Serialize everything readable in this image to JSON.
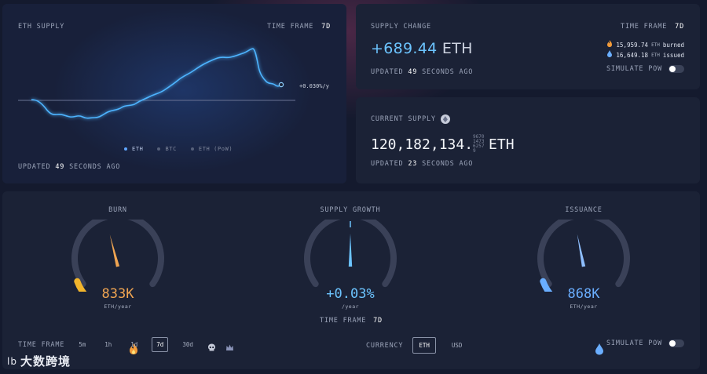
{
  "eth_supply": {
    "title": "ETH SUPPLY",
    "time_frame_label": "TIME FRAME",
    "time_frame_value": "7d",
    "rate_label": "+0.030%/y",
    "legend": [
      {
        "label": "ETH",
        "active": true
      },
      {
        "label": "BTC",
        "active": false
      },
      {
        "label": "ETH (PoW)",
        "active": false
      }
    ],
    "updated_prefix": "UPDATED",
    "updated_value": "49",
    "updated_suffix": "SECONDS AGO"
  },
  "supply_change": {
    "title": "SUPPLY CHANGE",
    "time_frame_label": "TIME FRAME",
    "time_frame_value": "7d",
    "value": "+689.44",
    "unit": "ETH",
    "burned_value": "15,959.74",
    "burned_unit": "ETH",
    "burned_label": "burned",
    "issued_value": "16,649.18",
    "issued_unit": "ETH",
    "issued_label": "issued",
    "updated_prefix": "UPDATED",
    "updated_value": "49",
    "updated_suffix": "SECONDS AGO",
    "simulate_label": "SIMULATE PoW"
  },
  "current_supply": {
    "title": "CURRENT SUPPLY",
    "value": "120,182,134.",
    "flicker_digits": "9670147362579",
    "unit": "ETH",
    "updated_prefix": "UPDATED",
    "updated_value": "23",
    "updated_suffix": "SECONDS AGO"
  },
  "gauges": {
    "burn": {
      "title": "BURN",
      "value": "833K",
      "unit": "ETH/year",
      "level": 0.45
    },
    "supply_growth": {
      "title": "SUPPLY GROWTH",
      "value": "+0.03%",
      "unit": "/year",
      "level": 0.5,
      "time_frame_label": "TIME FRAME",
      "time_frame_value": "7d"
    },
    "issuance": {
      "title": "ISSUANCE",
      "value": "868K",
      "unit": "ETH/year",
      "level": 0.46
    }
  },
  "controls": {
    "time_frame_label": "TIME FRAME",
    "time_frames": [
      "5m",
      "1h",
      "1d",
      "7d",
      "30d"
    ],
    "active_time_frame": "7d",
    "currency_label": "CURRENCY",
    "currencies": [
      "ETH",
      "USD"
    ],
    "active_currency": "ETH",
    "simulate_label": "SIMULATE PoW"
  },
  "colors": {
    "accent": "#6cc4ff",
    "burn": "#f0a552",
    "issuance": "#6aaeff"
  },
  "watermark": {
    "logo": "lb",
    "text": "大数跨境"
  }
}
